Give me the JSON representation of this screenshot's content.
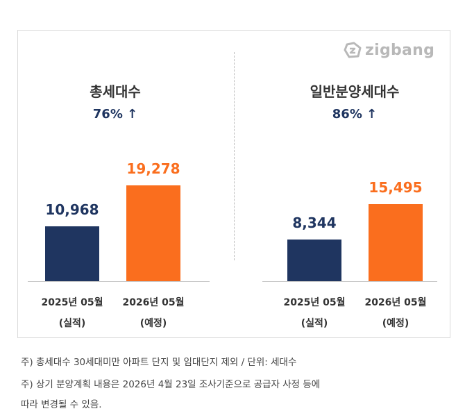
{
  "logo": {
    "text": "zigbang"
  },
  "chart_data": [
    {
      "type": "bar",
      "title": "총세대수",
      "change": "76% ↑",
      "categories": [
        "2025년 05월",
        "2026년 05월"
      ],
      "category_notes": [
        "(실적)",
        "(예정)"
      ],
      "values": [
        10968,
        19278
      ],
      "value_labels": [
        "10,968",
        "19,278"
      ],
      "colors": [
        "#1f3560",
        "#fa6e1e"
      ],
      "ylim": [
        0,
        25000
      ]
    },
    {
      "type": "bar",
      "title": "일반분양세대수",
      "change": "86% ↑",
      "categories": [
        "2025년 05월",
        "2026년 05월"
      ],
      "category_notes": [
        "(실적)",
        "(예정)"
      ],
      "values": [
        8344,
        15495
      ],
      "value_labels": [
        "8,344",
        "15,495"
      ],
      "colors": [
        "#1f3560",
        "#fa6e1e"
      ],
      "ylim": [
        0,
        25000
      ]
    }
  ],
  "notes": [
    "주) 총세대수 30세대미만 아파트  단지 및 임대단지 제외 / 단위: 세대수",
    "주) 상기 분양계획 내용은 2026년 4월 23일 조사기준으로 공급자 사정 등에",
    "따라 변경될 수 있음."
  ]
}
